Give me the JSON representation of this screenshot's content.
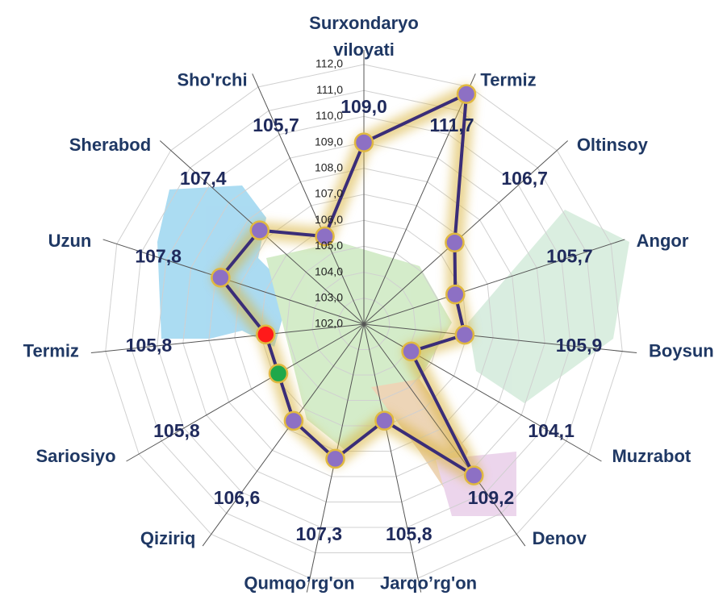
{
  "chart_data": {
    "type": "radar",
    "categories": [
      "Surxondaryo viloyati",
      "Termiz",
      "Oltinsoy",
      "Angor",
      "Boysun",
      "Muzrabot",
      "Denov",
      "Jarqo’rg'on",
      "Qumqo’rg'on",
      "Qiziriq",
      "Sariosiyo",
      "Termiz",
      "Uzun",
      "Sherabod",
      "Sho'rchi"
    ],
    "values": [
      109.0,
      111.7,
      106.7,
      105.7,
      105.9,
      104.1,
      109.2,
      105.8,
      107.3,
      106.6,
      105.8,
      105.8,
      107.8,
      107.4,
      105.7
    ],
    "value_labels": [
      "109,0",
      "111,7",
      "106,7",
      "105,7",
      "105,9",
      "104,1",
      "109,2",
      "105,8",
      "107,3",
      "106,6",
      "105,8",
      "105,8",
      "107,8",
      "107,4",
      "105,7"
    ],
    "line_color": "#3a2d78",
    "marker_colors": [
      "#8d70c4",
      "#8d70c4",
      "#8d70c4",
      "#8d70c4",
      "#8d70c4",
      "#8d70c4",
      "#8d70c4",
      "#8d70c4",
      "#8d70c4",
      "#8d70c4",
      "#1fa84a",
      "#ff1a1a",
      "#8d70c4",
      "#8d70c4",
      "#8d70c4"
    ],
    "ylim": [
      102,
      112
    ],
    "yticks": [
      {
        "value": 102,
        "label": "102,0"
      },
      {
        "value": 103,
        "label": "103,0"
      },
      {
        "value": 104,
        "label": "104,0"
      },
      {
        "value": 105,
        "label": "105,0"
      },
      {
        "value": 106,
        "label": "106,0"
      },
      {
        "value": 107,
        "label": "107,0"
      },
      {
        "value": 108,
        "label": "108,0"
      },
      {
        "value": 109,
        "label": "109,0"
      },
      {
        "value": 110,
        "label": "110,0"
      },
      {
        "value": 111,
        "label": "111,0"
      },
      {
        "value": 112,
        "label": "112,0"
      }
    ],
    "grid": true
  }
}
